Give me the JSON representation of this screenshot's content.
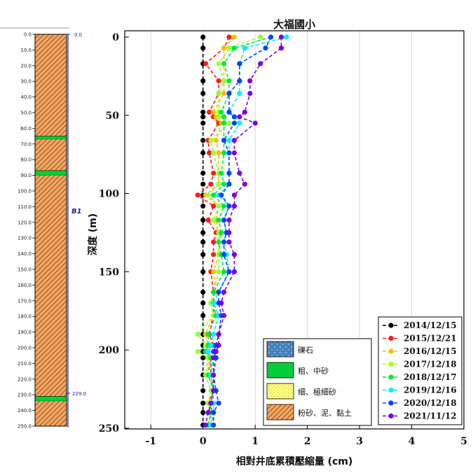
{
  "chart_data": {
    "type": "line",
    "title": "大福國小",
    "xlabel": "相對井底累積壓縮量 (cm)",
    "ylabel": "深度 (m)",
    "xlim": [
      -1.5,
      5
    ],
    "ylim": [
      250,
      0
    ],
    "x_ticks": [
      "-1",
      "0",
      "1",
      "2",
      "3",
      "4",
      "5"
    ],
    "x_tick_values": [
      -1,
      0,
      1,
      2,
      3,
      4,
      5
    ],
    "y_ticks": [
      "0",
      "50",
      "100",
      "150",
      "200",
      "250"
    ],
    "y_tick_values": [
      0,
      50,
      100,
      150,
      200,
      250
    ],
    "depths": [
      0,
      7,
      17,
      28,
      36,
      48,
      51,
      55,
      66,
      74,
      87,
      94,
      101,
      108,
      117,
      125,
      131,
      139,
      150,
      163,
      170,
      178,
      190,
      197,
      201,
      205,
      216,
      226,
      234,
      240,
      248
    ],
    "series": [
      {
        "name": "2014/12/15",
        "color": "#000000",
        "values": [
          0,
          0,
          0,
          0,
          0,
          0,
          0,
          0,
          0,
          0,
          0,
          0,
          0,
          0,
          0,
          0,
          0,
          0,
          0,
          0,
          0,
          0,
          0,
          0,
          0,
          0,
          0,
          0,
          0,
          0,
          0
        ]
      },
      {
        "name": "2015/12/21",
        "color": "#ff1a1a",
        "values": [
          0.5,
          0.4,
          0.05,
          0.3,
          0.3,
          0.12,
          0.2,
          0.3,
          0.1,
          0.12,
          0.2,
          0.15,
          -0.1,
          0.2,
          0.1,
          0.25,
          0.2,
          0.2,
          0.15,
          0.2,
          0.2,
          0.2,
          0.12,
          0.2,
          0.05,
          0.15,
          0.15,
          0.2,
          0.1,
          0.2,
          0.2
        ]
      },
      {
        "name": "2016/12/15",
        "color": "#ffbf00",
        "values": [
          0.6,
          0.4,
          0.4,
          0.4,
          0.4,
          0.2,
          0.25,
          0.35,
          0.25,
          0.3,
          0.3,
          0.3,
          0.05,
          0.3,
          0.25,
          0.3,
          0.3,
          0.3,
          0.2,
          0.25,
          0.15,
          0.2,
          0.05,
          0.1,
          0.05,
          0.1,
          0.1,
          0.2,
          0.1,
          0.15,
          0.15
        ]
      },
      {
        "name": "2017/12/18",
        "color": "#99ff33",
        "values": [
          1.1,
          0.5,
          0.3,
          0.4,
          0.3,
          0.3,
          0.3,
          0.5,
          0.15,
          0.2,
          0.3,
          0.3,
          0.1,
          0.3,
          0.2,
          0.3,
          0.3,
          0.3,
          0.3,
          0.2,
          0.15,
          0.2,
          -0.1,
          0.05,
          -0.1,
          0.1,
          0.05,
          0.15,
          0.1,
          0.15,
          0.1
        ]
      },
      {
        "name": "2018/12/17",
        "color": "#00e83a",
        "values": [
          1.3,
          0.6,
          0.4,
          0.5,
          0.5,
          0.35,
          0.4,
          0.4,
          0.4,
          0.4,
          0.35,
          0.4,
          0.2,
          0.4,
          0.3,
          0.35,
          0.3,
          0.35,
          0.4,
          0.2,
          0.2,
          0.25,
          0.1,
          0.1,
          0.05,
          0.15,
          0.1,
          0.2,
          0.15,
          0.15,
          0.1
        ]
      },
      {
        "name": "2019/12/16",
        "color": "#00f0ff",
        "values": [
          1.6,
          0.8,
          0.7,
          0.7,
          0.7,
          0.5,
          0.6,
          0.7,
          0.5,
          0.5,
          0.5,
          0.5,
          0.3,
          0.5,
          0.4,
          0.45,
          0.4,
          0.45,
          0.5,
          0.3,
          0.2,
          0.3,
          0.2,
          0.15,
          0.1,
          0.2,
          0.15,
          0.2,
          0.2,
          0.2,
          0.15
        ]
      },
      {
        "name": "2020/12/18",
        "color": "#0044ff",
        "values": [
          1.3,
          1.2,
          0.7,
          0.7,
          0.5,
          0.5,
          0.6,
          0.6,
          0.4,
          0.5,
          0.5,
          0.5,
          0.35,
          0.5,
          0.4,
          0.45,
          0.4,
          0.4,
          0.5,
          0.3,
          0.3,
          0.35,
          0.3,
          0.25,
          0.2,
          0.25,
          0.2,
          0.25,
          0.3,
          0.2,
          0.2
        ]
      },
      {
        "name": "2021/11/12",
        "color": "#7a00e6",
        "values": [
          1.5,
          1.5,
          1.1,
          0.9,
          0.9,
          0.8,
          0.7,
          1.0,
          0.6,
          0.6,
          0.7,
          0.8,
          0.6,
          0.6,
          0.5,
          0.5,
          0.5,
          0.6,
          0.6,
          0.4,
          0.35,
          0.4,
          0.3,
          0.3,
          0.25,
          0.2,
          0.2,
          0.2,
          0.15,
          0.1,
          0.05
        ]
      }
    ],
    "legend": {
      "position": "bottom-right"
    }
  },
  "lithology": {
    "legend": [
      {
        "label": "礫石",
        "type": "gravel",
        "color": "#5b9bd5"
      },
      {
        "label": "粗、中砂",
        "type": "coarse-sand",
        "color": "#00e040"
      },
      {
        "label": "細、極細砂",
        "type": "fine-sand",
        "color": "#ffff80"
      },
      {
        "label": "粉砂、泥、黏土",
        "type": "silt-clay",
        "color": "#f4a460"
      }
    ],
    "log_depth_ticks": [
      "0.0",
      "10.0",
      "20.0",
      "30.0",
      "40.0",
      "50.0",
      "60.0",
      "70.0",
      "80.0",
      "90.0",
      "100.0",
      "110.0",
      "120.0",
      "130.0",
      "140.0",
      "150.0",
      "160.0",
      "170.0",
      "180.0",
      "190.0",
      "200.0",
      "210.0",
      "220.0",
      "230.0",
      "240.0",
      "250.0"
    ],
    "log_depth_values": [
      0,
      10,
      20,
      30,
      40,
      50,
      60,
      70,
      80,
      90,
      100,
      110,
      120,
      130,
      140,
      150,
      160,
      170,
      180,
      190,
      200,
      210,
      220,
      230,
      240,
      250
    ],
    "layers": [
      {
        "type": "silt-clay",
        "top": 0,
        "bottom": 65
      },
      {
        "type": "coarse-sand",
        "top": 65,
        "bottom": 67
      },
      {
        "type": "silt-clay",
        "top": 67,
        "bottom": 87
      },
      {
        "type": "coarse-sand",
        "top": 87,
        "bottom": 90
      },
      {
        "type": "silt-clay",
        "top": 90,
        "bottom": 231
      },
      {
        "type": "coarse-sand",
        "top": 231,
        "bottom": 234
      },
      {
        "type": "silt-clay",
        "top": 234,
        "bottom": 250
      }
    ],
    "well_label": "B1",
    "well_top_label": "0.0",
    "well_screen_label": "229.0"
  }
}
